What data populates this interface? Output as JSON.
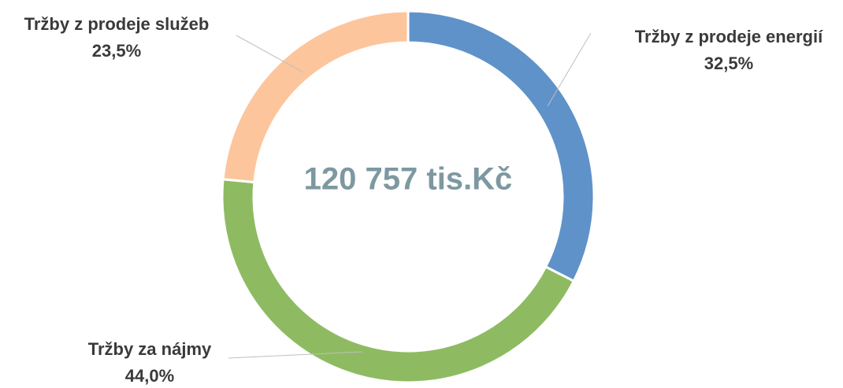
{
  "chart_data": {
    "type": "donut",
    "center_label": "120 757 tis.Kč",
    "categories": [
      "Tržby z prodeje energií",
      "Tržby za nájmy",
      "Tržby z prodeje služeb"
    ],
    "values": [
      32.5,
      44.0,
      23.5
    ],
    "value_labels": [
      "32,5%",
      "44,0%",
      "23,5%"
    ],
    "colors": [
      "#5f92c8",
      "#8ebb62",
      "#fdc59c"
    ]
  }
}
